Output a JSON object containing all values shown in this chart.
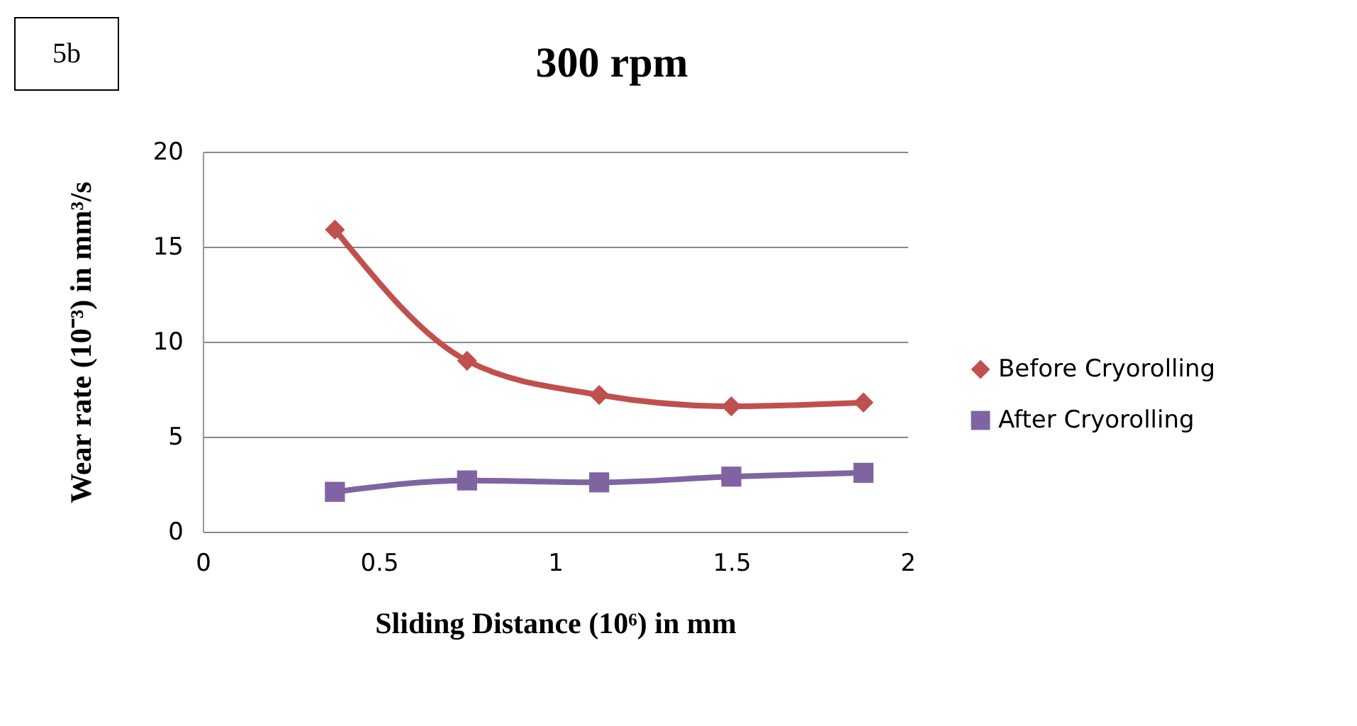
{
  "chart_data": {
    "type": "line",
    "title": "300 rpm",
    "xlabel": "Sliding Distance (10⁶) in mm",
    "ylabel": "Wear  rate (10⁻³) in mm³/s",
    "annotations": [
      "5b"
    ],
    "x": [
      0.375,
      0.75,
      1.125,
      1.5,
      1.875
    ],
    "series": [
      {
        "name": "Before Cryorolling",
        "color": "#c0504d",
        "marker": "diamond",
        "values": [
          15.9,
          9.0,
          7.2,
          6.6,
          6.8
        ]
      },
      {
        "name": "After Cryorolling",
        "color": "#8064a2",
        "marker": "square",
        "values": [
          2.1,
          2.7,
          2.6,
          2.9,
          3.1
        ]
      }
    ],
    "xlim": [
      0,
      2
    ],
    "xticks": [
      0,
      0.5,
      1,
      1.5,
      2
    ],
    "ylim": [
      0,
      20
    ],
    "yticks": [
      0,
      5,
      10,
      15,
      20
    ],
    "grid": "y",
    "legend": "right",
    "line_style": "solid"
  }
}
